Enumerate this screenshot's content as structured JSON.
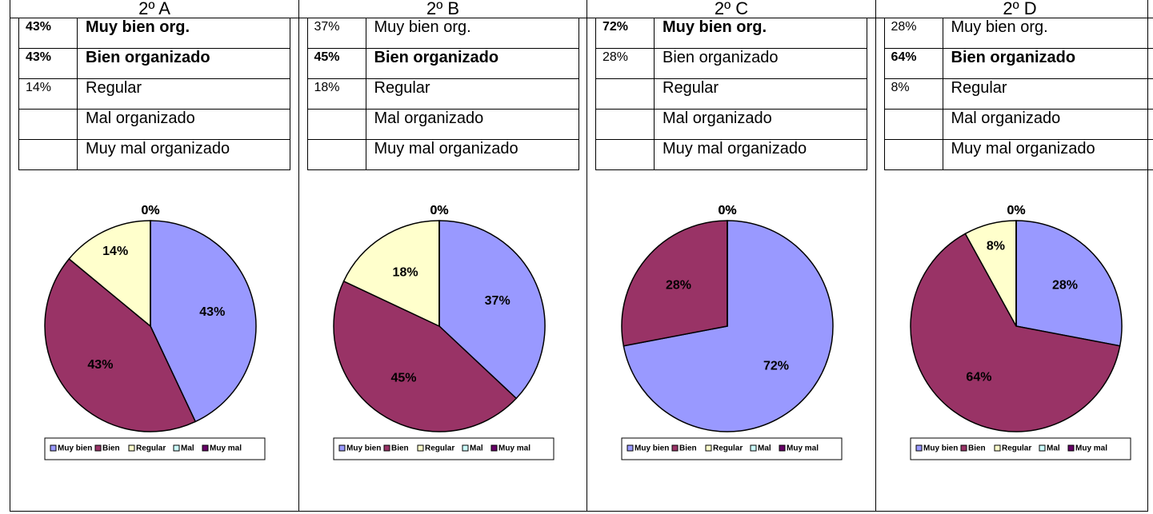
{
  "columns": [
    {
      "header": "2º A",
      "rows": [
        {
          "pct": "43%",
          "label": "Muy bien org.",
          "bold": true
        },
        {
          "pct": "43%",
          "label": "Bien organizado",
          "bold": true
        },
        {
          "pct": "14%",
          "label": "Regular"
        },
        {
          "label": "Mal organizado"
        },
        {
          "label": "Muy mal organizado"
        }
      ]
    },
    {
      "header": "2º B",
      "rows": [
        {
          "pct": "37%",
          "label": "Muy bien org."
        },
        {
          "pct": "45%",
          "label": "Bien organizado",
          "bold": true
        },
        {
          "pct": "18%",
          "label": "Regular"
        },
        {
          "label": "Mal organizado"
        },
        {
          "label": "Muy mal organizado"
        }
      ]
    },
    {
      "header": "2º C",
      "rows": [
        {
          "pct": "72%",
          "label": "Muy bien org.",
          "bold": true
        },
        {
          "pct": "28%",
          "label": "Bien organizado"
        },
        {
          "label": "Regular"
        },
        {
          "label": "Mal organizado"
        },
        {
          "label": "Muy mal organizado"
        }
      ]
    },
    {
      "header": "2º D",
      "rows": [
        {
          "pct": "28%",
          "label": "Muy bien org."
        },
        {
          "pct": "64%",
          "label": "Bien organizado",
          "bold": true
        },
        {
          "pct": "8%",
          "label": "Regular"
        },
        {
          "label": "Mal organizado"
        },
        {
          "label": "Muy mal organizado"
        }
      ]
    }
  ],
  "chart_data": [
    {
      "type": "pie",
      "categories": [
        "Muy bien",
        "Bien",
        "Regular",
        "Mal",
        "Muy mal"
      ],
      "values": [
        43,
        43,
        14,
        0,
        0
      ],
      "value_labels": [
        "43%",
        "43%",
        "14%",
        "0%",
        "0%"
      ],
      "colors": [
        "#9999ff",
        "#993366",
        "#ffffcc",
        "#ccffff",
        "#660066"
      ]
    },
    {
      "type": "pie",
      "categories": [
        "Muy bien",
        "Bien",
        "Regular",
        "Mal",
        "Muy mal"
      ],
      "values": [
        37,
        45,
        18,
        0,
        0
      ],
      "value_labels": [
        "37%",
        "45%",
        "18%",
        "0%",
        "0%"
      ],
      "colors": [
        "#9999ff",
        "#993366",
        "#ffffcc",
        "#ccffff",
        "#660066"
      ]
    },
    {
      "type": "pie",
      "categories": [
        "Muy bien",
        "Bien",
        "Regular",
        "Mal",
        "Muy mal"
      ],
      "values": [
        72,
        28,
        0,
        0,
        0
      ],
      "value_labels": [
        "72%",
        "28%",
        "0%",
        "0%",
        "0%"
      ],
      "colors": [
        "#9999ff",
        "#993366",
        "#ffffcc",
        "#ccffff",
        "#660066"
      ]
    },
    {
      "type": "pie",
      "categories": [
        "Muy bien",
        "Bien",
        "Regular",
        "Mal",
        "Muy mal"
      ],
      "values": [
        28,
        64,
        8,
        0,
        0
      ],
      "value_labels": [
        "28%",
        "64%",
        "8%",
        "0%",
        "0%"
      ],
      "colors": [
        "#9999ff",
        "#993366",
        "#ffffcc",
        "#ccffff",
        "#660066"
      ]
    }
  ]
}
